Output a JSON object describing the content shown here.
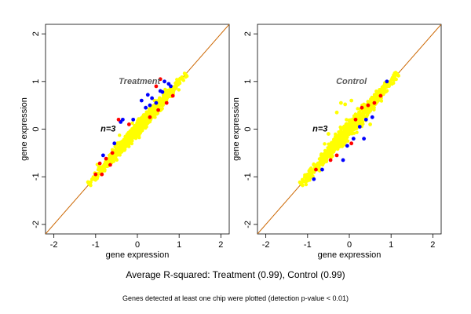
{
  "chart_data": [
    {
      "type": "scatter",
      "panel_title": "Treatment",
      "annotation": "n=3",
      "xlabel": "gene expression",
      "ylabel": "gene expression",
      "xlim": [
        -2.2,
        2.2
      ],
      "ylim": [
        -2.2,
        2.2
      ],
      "x_ticks": [
        -2,
        -1,
        0,
        1,
        2
      ],
      "y_ticks": [
        -2,
        -1,
        0,
        1,
        2
      ],
      "reference_line": {
        "slope": 1,
        "intercept": 0,
        "color": "#cc6600"
      },
      "series": [
        {
          "color": "#0000ff",
          "points": [
            [
              -0.82,
              -0.55
            ],
            [
              -0.35,
              0.2
            ],
            [
              -0.4,
              0.15
            ],
            [
              0.1,
              0.6
            ],
            [
              0.25,
              0.72
            ],
            [
              0.35,
              0.65
            ],
            [
              0.3,
              0.5
            ],
            [
              0.55,
              0.8
            ],
            [
              0.6,
              0.78
            ],
            [
              0.75,
              0.95
            ],
            [
              -0.55,
              -0.3
            ],
            [
              0.2,
              0.45
            ],
            [
              0.45,
              0.55
            ],
            [
              -0.1,
              0.2
            ],
            [
              0.65,
              1.0
            ],
            [
              0.8,
              0.9
            ]
          ]
        },
        {
          "color": "#ff0000",
          "points": [
            [
              -0.9,
              -0.72
            ],
            [
              -0.75,
              -0.62
            ],
            [
              -0.6,
              -0.5
            ],
            [
              -0.65,
              -0.75
            ],
            [
              -0.45,
              0.2
            ],
            [
              -0.2,
              0.1
            ],
            [
              0.45,
              0.9
            ],
            [
              0.55,
              1.05
            ],
            [
              0.85,
              0.7
            ],
            [
              0.5,
              0.4
            ],
            [
              0.3,
              0.25
            ],
            [
              -1.0,
              -0.95
            ],
            [
              -0.85,
              -0.95
            ],
            [
              0.7,
              0.55
            ]
          ]
        }
      ],
      "cloud": {
        "color": "#ffff00",
        "center": [
          0.0,
          0.0
        ],
        "spread_along": 0.55,
        "spread_across": 0.09,
        "range": [
          -1.15,
          1.15
        ]
      }
    },
    {
      "type": "scatter",
      "panel_title": "Control",
      "annotation": "n=3",
      "xlabel": "gene expression",
      "ylabel": "gene expression",
      "xlim": [
        -2.2,
        2.2
      ],
      "ylim": [
        -2.2,
        2.2
      ],
      "x_ticks": [
        -2,
        -1,
        0,
        1,
        2
      ],
      "y_ticks": [
        -2,
        -1,
        0,
        1,
        2
      ],
      "reference_line": {
        "slope": 1,
        "intercept": 0,
        "color": "#cc6600"
      },
      "series": [
        {
          "color": "#0000ff",
          "points": [
            [
              -0.15,
              -0.65
            ],
            [
              0.35,
              -0.2
            ],
            [
              0.55,
              0.25
            ],
            [
              -0.85,
              -1.05
            ],
            [
              -0.65,
              -0.85
            ],
            [
              0.4,
              0.2
            ],
            [
              0.1,
              -0.2
            ],
            [
              0.25,
              0.05
            ],
            [
              0.9,
              1.0
            ],
            [
              -0.05,
              -0.35
            ]
          ]
        },
        {
          "color": "#ff0000",
          "points": [
            [
              0.3,
              0.45
            ],
            [
              -0.3,
              -0.55
            ],
            [
              0.05,
              -0.3
            ],
            [
              -0.45,
              -0.65
            ],
            [
              0.6,
              0.55
            ],
            [
              0.75,
              0.7
            ],
            [
              -0.8,
              -0.85
            ],
            [
              0.15,
              0.2
            ],
            [
              0.45,
              0.5
            ]
          ]
        },
        {
          "color": "#ffff00",
          "points": [
            [
              -0.2,
              0.55
            ],
            [
              -0.1,
              0.52
            ],
            [
              -0.5,
              -0.1
            ],
            [
              0.05,
              0.6
            ],
            [
              -0.3,
              0.35
            ],
            [
              0.5,
              0.1
            ]
          ]
        }
      ],
      "cloud": {
        "color": "#ffff00",
        "center": [
          0.0,
          0.0
        ],
        "spread_along": 0.55,
        "spread_across": 0.1,
        "range": [
          -1.15,
          1.15
        ]
      }
    }
  ],
  "caption": "Average R-squared: Treatment (0.99), Control (0.99)",
  "note": "Genes detected at least one chip were plotted (detection p-value < 0.01)"
}
